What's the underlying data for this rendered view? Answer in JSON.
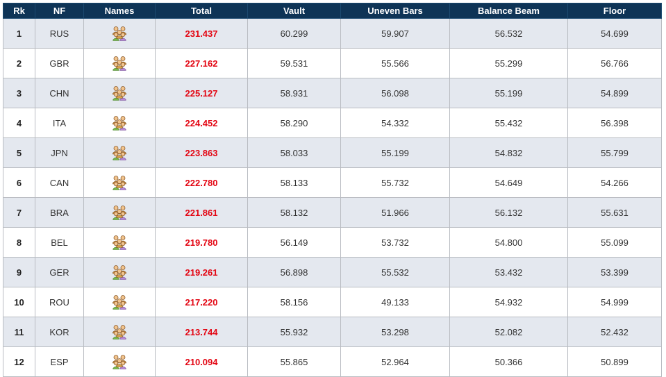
{
  "table": {
    "headers": [
      "Rk",
      "NF",
      "Names",
      "Total",
      "Vault",
      "Uneven Bars",
      "Balance Beam",
      "Floor"
    ],
    "names_icon": "people-group-icon",
    "colors": {
      "header_bg": "#0e3456",
      "total_text": "#e30613",
      "row_alt": "#e4e8ef"
    },
    "rows": [
      {
        "rank": "1",
        "nf": "RUS",
        "total": "231.437",
        "vault": "60.299",
        "bars": "59.907",
        "beam": "56.532",
        "floor": "54.699"
      },
      {
        "rank": "2",
        "nf": "GBR",
        "total": "227.162",
        "vault": "59.531",
        "bars": "55.566",
        "beam": "55.299",
        "floor": "56.766"
      },
      {
        "rank": "3",
        "nf": "CHN",
        "total": "225.127",
        "vault": "58.931",
        "bars": "56.098",
        "beam": "55.199",
        "floor": "54.899"
      },
      {
        "rank": "4",
        "nf": "ITA",
        "total": "224.452",
        "vault": "58.290",
        "bars": "54.332",
        "beam": "55.432",
        "floor": "56.398"
      },
      {
        "rank": "5",
        "nf": "JPN",
        "total": "223.863",
        "vault": "58.033",
        "bars": "55.199",
        "beam": "54.832",
        "floor": "55.799"
      },
      {
        "rank": "6",
        "nf": "CAN",
        "total": "222.780",
        "vault": "58.133",
        "bars": "55.732",
        "beam": "54.649",
        "floor": "54.266"
      },
      {
        "rank": "7",
        "nf": "BRA",
        "total": "221.861",
        "vault": "58.132",
        "bars": "51.966",
        "beam": "56.132",
        "floor": "55.631"
      },
      {
        "rank": "8",
        "nf": "BEL",
        "total": "219.780",
        "vault": "56.149",
        "bars": "53.732",
        "beam": "54.800",
        "floor": "55.099"
      },
      {
        "rank": "9",
        "nf": "GER",
        "total": "219.261",
        "vault": "56.898",
        "bars": "55.532",
        "beam": "53.432",
        "floor": "53.399"
      },
      {
        "rank": "10",
        "nf": "ROU",
        "total": "217.220",
        "vault": "58.156",
        "bars": "49.133",
        "beam": "54.932",
        "floor": "54.999"
      },
      {
        "rank": "11",
        "nf": "KOR",
        "total": "213.744",
        "vault": "55.932",
        "bars": "53.298",
        "beam": "52.082",
        "floor": "52.432"
      },
      {
        "rank": "12",
        "nf": "ESP",
        "total": "210.094",
        "vault": "55.865",
        "bars": "52.964",
        "beam": "50.366",
        "floor": "50.899"
      }
    ]
  }
}
